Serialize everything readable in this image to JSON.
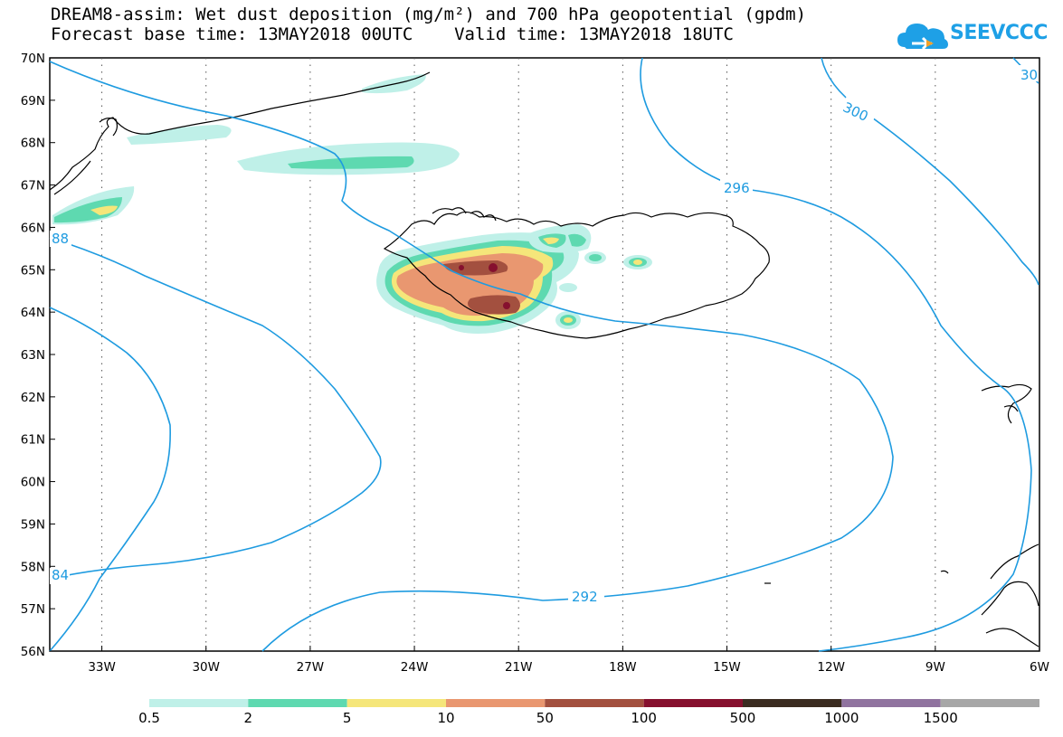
{
  "header": {
    "title_line1": "DREAM8-assim: Wet dust deposition (mg/m²) and 700 hPa geopotential (gpdm)",
    "title_line2": "Forecast base time: 13MAY2018 00UTC    Valid time: 13MAY2018 18UTC"
  },
  "logo": {
    "text": "SEEVCCC",
    "icon": "cloud-icon",
    "color": "#1ea0e6"
  },
  "map": {
    "lat_labels": [
      "70N",
      "69N",
      "68N",
      "67N",
      "66N",
      "65N",
      "64N",
      "63N",
      "62N",
      "61N",
      "60N",
      "59N",
      "58N",
      "57N",
      "56N"
    ],
    "lon_labels": [
      "33W",
      "30W",
      "27W",
      "24W",
      "21W",
      "18W",
      "15W",
      "12W",
      "9W",
      "6W"
    ],
    "contour_color": "#1e9be0",
    "contour_labels": [
      "30",
      "300",
      "296",
      "88",
      "84",
      "292"
    ]
  },
  "colorbar": {
    "labels": [
      "0.5",
      "2",
      "5",
      "10",
      "50",
      "100",
      "500",
      "1000",
      "1500"
    ],
    "colors": [
      "#bff0e8",
      "#5ed9b0",
      "#f5e67a",
      "#e99770",
      "#a3503f",
      "#86102e",
      "#3b2c21",
      "#90739f",
      "#a7a7a7"
    ]
  }
}
